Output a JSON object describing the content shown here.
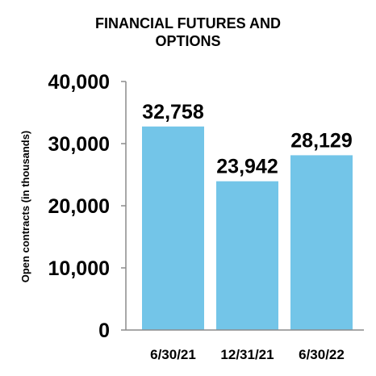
{
  "chart_data": {
    "type": "bar",
    "title_lines": [
      "FINANCIAL FUTURES AND",
      "OPTIONS"
    ],
    "ylabel": "Open contracts (in thousands)",
    "xlabel": "",
    "categories": [
      "6/30/21",
      "12/31/21",
      "6/30/22"
    ],
    "values": [
      32758,
      23942,
      28129
    ],
    "value_labels": [
      "32,758",
      "23,942",
      "28,129"
    ],
    "ylim": [
      0,
      40000
    ],
    "yticks": [
      0,
      10000,
      20000,
      30000,
      40000
    ],
    "ytick_labels": [
      "0",
      "10,000",
      "20,000",
      "30,000",
      "40,000"
    ],
    "grid": false,
    "legend": "none",
    "bar_color": "#73c5e8"
  }
}
